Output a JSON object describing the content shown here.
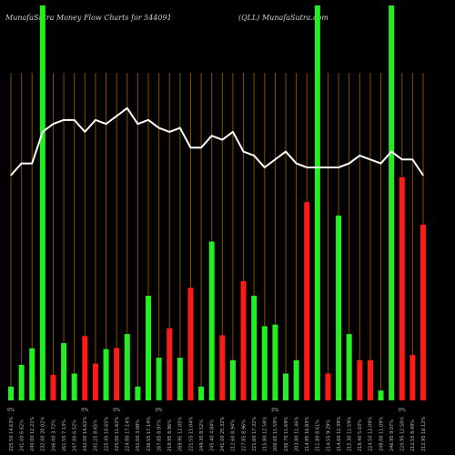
{
  "header": {
    "left": "MunafaSutra  Money Flow  Charts for 544091",
    "right": "(QLL) MunafaSutra.com"
  },
  "colors": {
    "background": "#000000",
    "up": "#22ee22",
    "down": "#ff1a1a",
    "grid": "#8a4a00",
    "line": "#ffffff"
  },
  "chart_data": {
    "type": "bar",
    "grid": true,
    "ylim": [
      0,
      100
    ],
    "series": [
      {
        "values": [
          3.5,
          9,
          13.2,
          100,
          6.5,
          14.5,
          6.8,
          16.3,
          9.3,
          13,
          13.3,
          16.8,
          3.5,
          26.5,
          10.8,
          18.3,
          10.8,
          28.5,
          3.5,
          40.2,
          16.5,
          10.2,
          30.2,
          26.5,
          18.8,
          19.2,
          6.8,
          10.2,
          50.2,
          100,
          6.8,
          46.8,
          16.8,
          10.2,
          10.2,
          2.5,
          100,
          56.5,
          11.5,
          44.5
        ],
        "colors": [
          "up",
          "up",
          "up",
          "up",
          "down",
          "up",
          "up",
          "down",
          "down",
          "up",
          "down",
          "up",
          "up",
          "up",
          "up",
          "down",
          "up",
          "down",
          "up",
          "up",
          "down",
          "up",
          "down",
          "up",
          "up",
          "up",
          "up",
          "up",
          "down",
          "up",
          "down",
          "up",
          "up",
          "down",
          "down",
          "up",
          "up",
          "down",
          "down",
          "down"
        ]
      },
      {
        "values": [
          57,
          60,
          60,
          68,
          70,
          71,
          71,
          68,
          71,
          70,
          72,
          74,
          70,
          71,
          69,
          68,
          69,
          64,
          64,
          67,
          66,
          68,
          63,
          62,
          59,
          61,
          63,
          60,
          59,
          59,
          59,
          59,
          60,
          62,
          61,
          60,
          63,
          61,
          61,
          57
        ]
      }
    ],
    "x_labels": [
      "225.50 14.63%",
      "241.00 6.62%",
      "240.00 12.21%",
      "232.00 20.02%",
      "246.00 3.72%",
      "261.55 7.13%",
      "247.00 6.52%",
      "242.00 14.62%",
      "241.25 8.65%",
      "225.45 10.65%",
      "225.00 11.62%",
      "224.80 17.14%",
      "241.00 3.08%",
      "236.55 17.14%",
      "267.85 8.97%",
      "219.95 8.96%",
      "269.95 12.05%",
      "221.55 15.04%",
      "249.30 8.52%",
      "245.40 4.84%",
      "241.00 25.32%",
      "212.60 8.94%",
      "227.85 8.96%",
      "221.60 17.32%",
      "215.80 12.58%",
      "206.65 11.59%",
      "236.70 11.69%",
      "203.80 11.46%",
      "214.85 16.83%",
      "211.80 8.61%",
      "214.55 9.29%",
      "214.60 12.39%",
      "215.30 11.59%",
      "218.40 5.03%",
      "224.50 12.09%",
      "248.00 11.09%",
      "246.95 9.07%",
      "220.95 12.50%",
      "212.55 8.49%",
      "212.95 16.12%"
    ],
    "markers": [
      "0%",
      "0%",
      "0%",
      "0%",
      "0%",
      "0%"
    ]
  }
}
